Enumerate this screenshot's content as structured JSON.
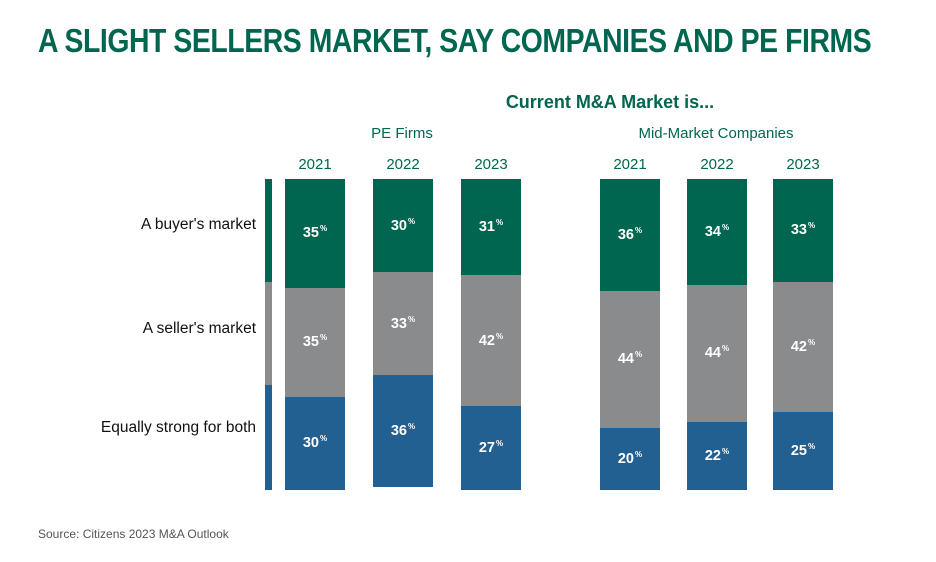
{
  "title": "A SLIGHT SELLERS MARKET, SAY COMPANIES AND PE FIRMS",
  "source": "Source: Citizens 2023 M&A Outlook",
  "percent_suffix": "%",
  "colors": {
    "title_green": "#006650",
    "buyer": "#006650",
    "seller": "#8a8b8d",
    "equal": "#236092"
  },
  "chart_data": {
    "type": "bar",
    "stacked": true,
    "title": "Current M&A Market is...",
    "categories": [
      "A buyer's market",
      "A seller's market",
      "Equally strong for both"
    ],
    "groups": [
      {
        "name": "PE Firms",
        "bars": [
          {
            "year": "2021",
            "buyer": 35,
            "seller": 35,
            "equal": 30
          },
          {
            "year": "2022",
            "buyer": 30,
            "seller": 33,
            "equal": 36
          },
          {
            "year": "2023",
            "buyer": 31,
            "seller": 42,
            "equal": 27
          }
        ]
      },
      {
        "name": "Mid-Market Companies",
        "bars": [
          {
            "year": "2021",
            "buyer": 36,
            "seller": 44,
            "equal": 20
          },
          {
            "year": "2022",
            "buyer": 34,
            "seller": 44,
            "equal": 22
          },
          {
            "year": "2023",
            "buyer": 33,
            "seller": 42,
            "equal": 25
          }
        ]
      }
    ]
  }
}
